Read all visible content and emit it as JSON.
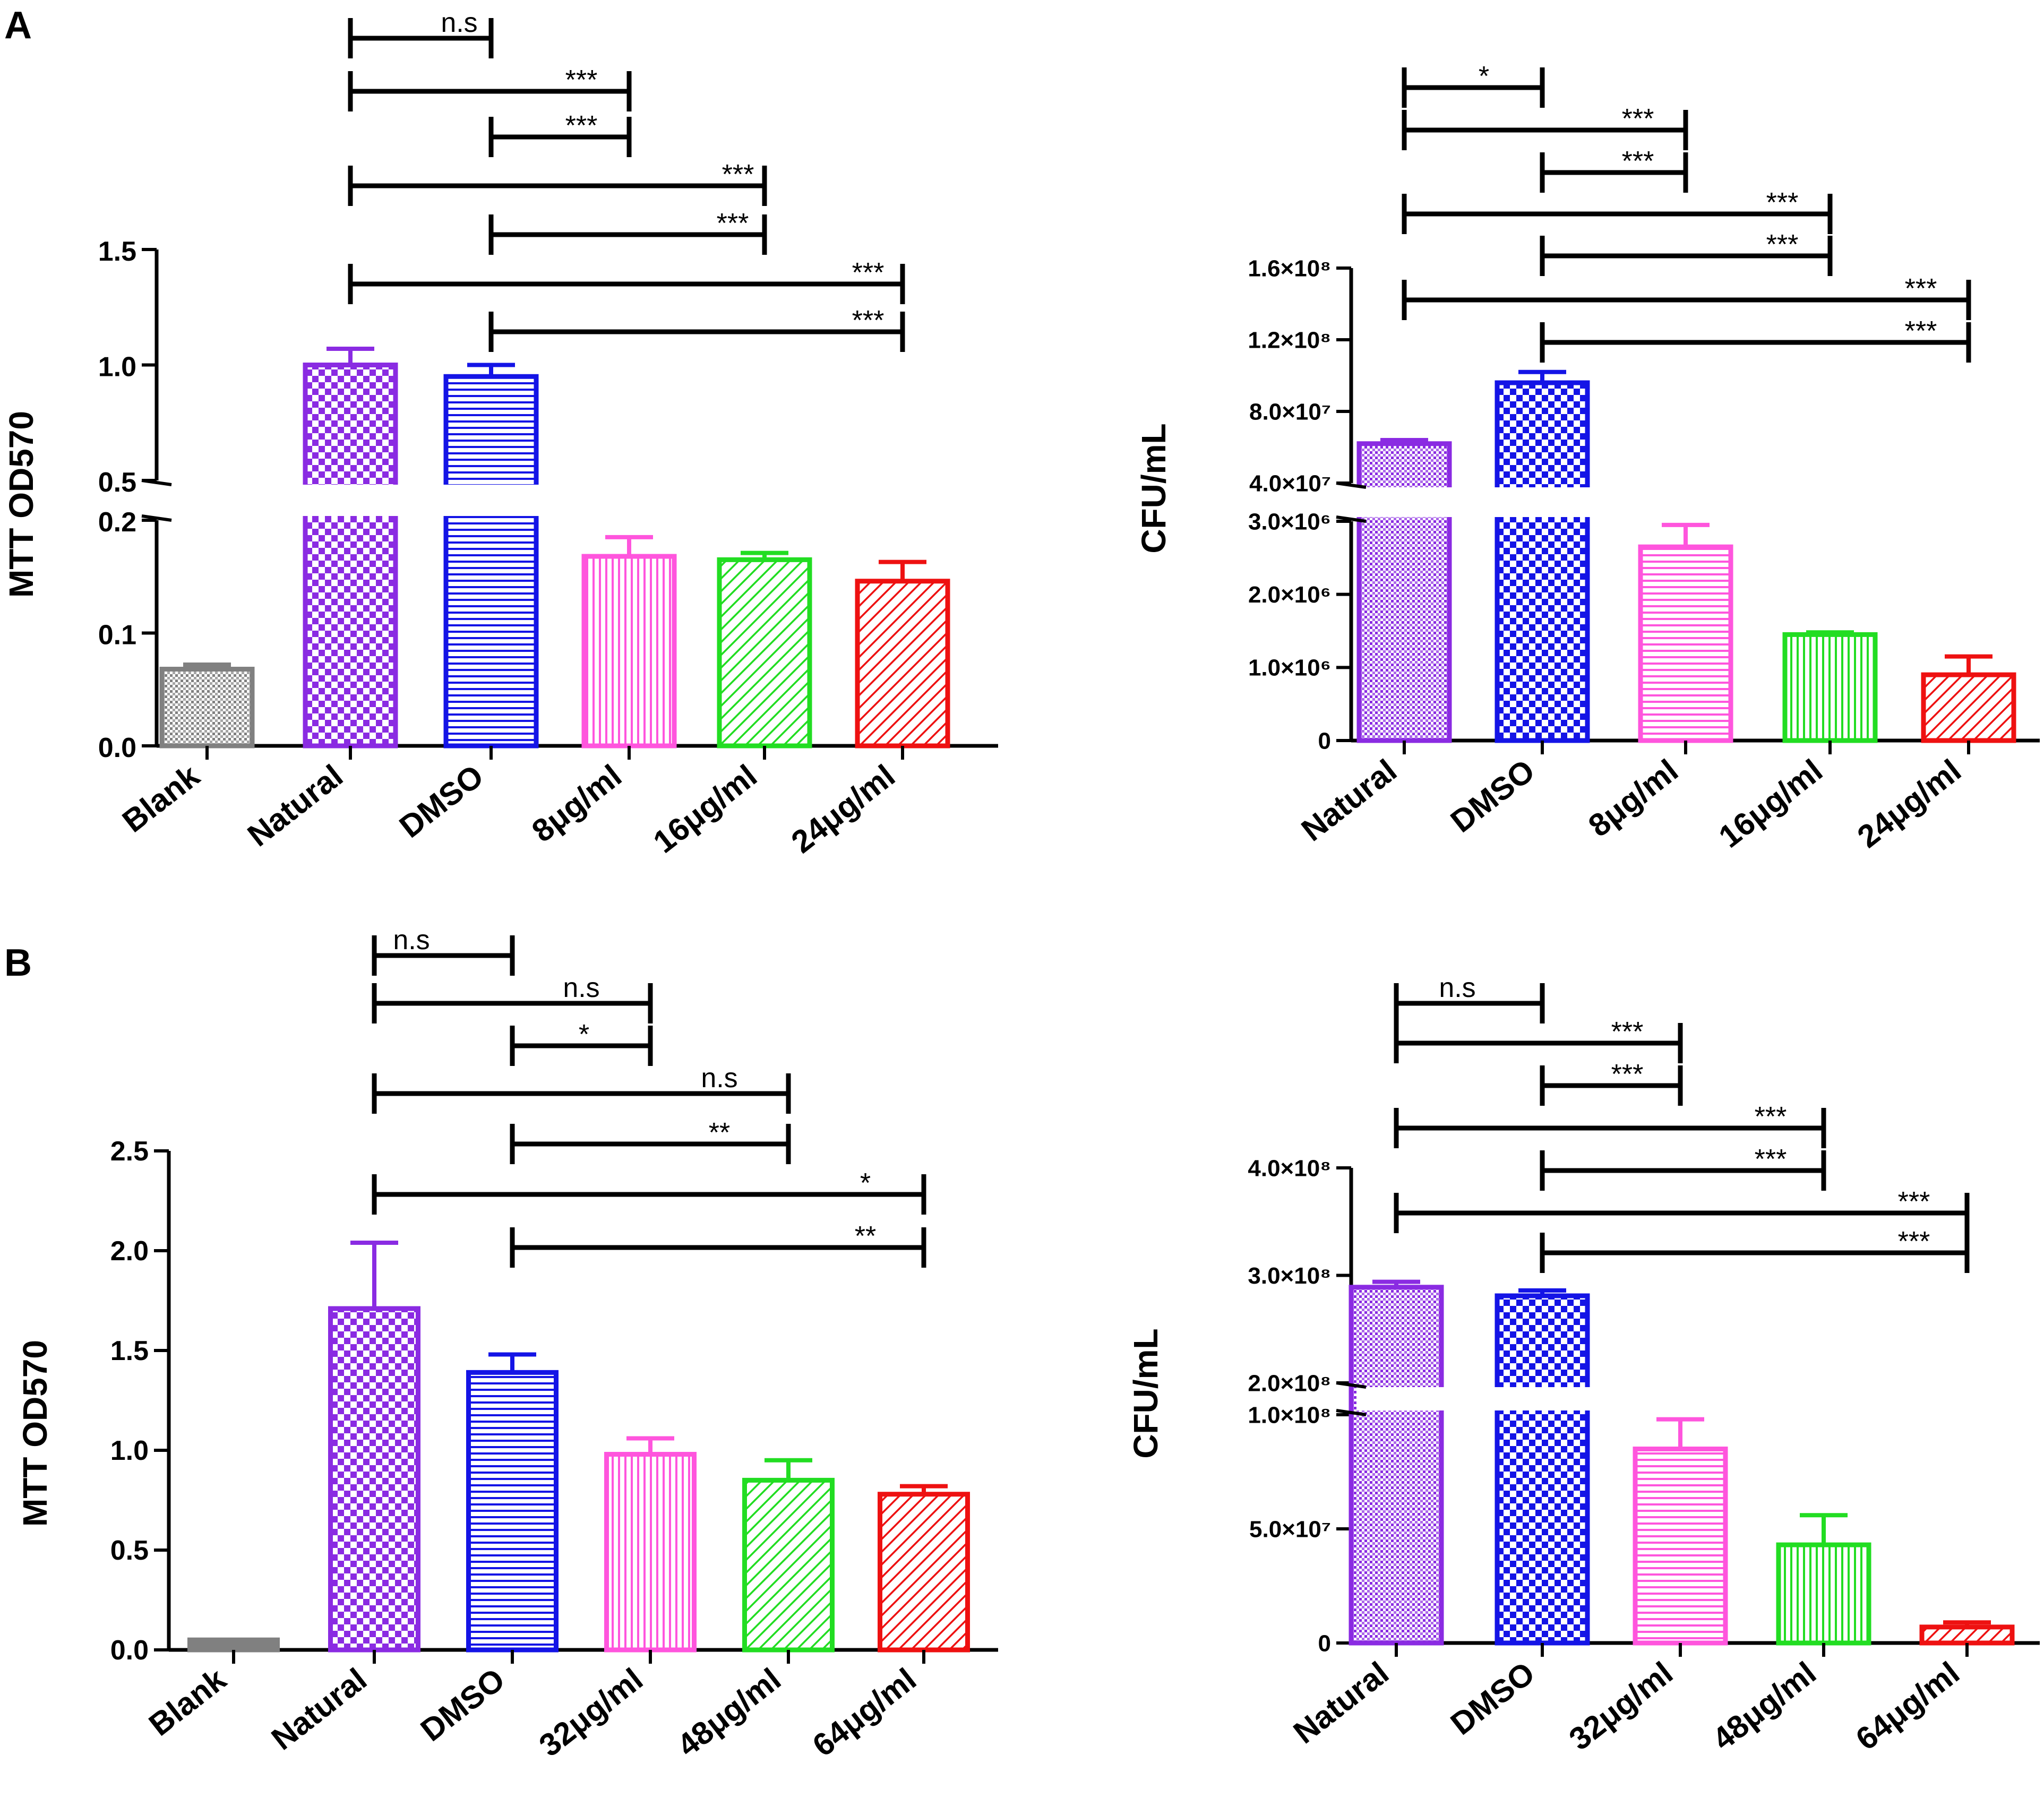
{
  "panel_labels": [
    "A",
    "B"
  ],
  "colors": {
    "Blank": "#808080",
    "Natural": "#8a2be2",
    "DMSO": "#1414e6",
    "pink": "#ff55dd",
    "green": "#22dd22",
    "red": "#ee1111"
  },
  "chart_data": [
    {
      "id": "A-left",
      "type": "bar",
      "panel": "A",
      "ylabel": "MTT OD570",
      "broken_axis": true,
      "ylim_lower": [
        0,
        0.2
      ],
      "ylim_upper": [
        0.5,
        1.5
      ],
      "yticks_lower": [
        {
          "v": 0.0,
          "label": "0.0"
        },
        {
          "v": 0.1,
          "label": "0.1"
        },
        {
          "v": 0.2,
          "label": "0.2"
        }
      ],
      "yticks_upper": [
        {
          "v": 0.5,
          "label": "0.5"
        },
        {
          "v": 1.0,
          "label": "1.0"
        },
        {
          "v": 1.5,
          "label": "1.5"
        }
      ],
      "categories": [
        "Blank",
        "Natural",
        "DMSO",
        "8μg/ml",
        "16μg/ml",
        "24μg/ml"
      ],
      "values": [
        0.068,
        1.0,
        0.95,
        0.168,
        0.165,
        0.146
      ],
      "errors": [
        0.004,
        0.07,
        0.05,
        0.017,
        0.006,
        0.017
      ],
      "patterns": [
        "dots",
        "checker",
        "hlines",
        "vlines",
        "diag",
        "diag"
      ],
      "colors": [
        "#808080",
        "#8a2be2",
        "#1414e6",
        "#ff55dd",
        "#22dd22",
        "#ee1111"
      ],
      "comparisons": [
        {
          "from": "Natural",
          "to": "DMSO",
          "label": "n.s"
        },
        {
          "from": "Natural",
          "to": "8μg/ml",
          "label": "***"
        },
        {
          "from": "DMSO",
          "to": "8μg/ml",
          "label": "***"
        },
        {
          "from": "Natural",
          "to": "16μg/ml",
          "label": "***"
        },
        {
          "from": "DMSO",
          "to": "16μg/ml",
          "label": "***"
        },
        {
          "from": "Natural",
          "to": "24μg/ml",
          "label": "***"
        },
        {
          "from": "DMSO",
          "to": "24μg/ml",
          "label": "***"
        }
      ]
    },
    {
      "id": "A-right",
      "type": "bar",
      "panel": "A",
      "ylabel": "CFU/mL",
      "broken_axis": true,
      "ylim_lower": [
        0,
        3000000
      ],
      "ylim_upper": [
        40000000,
        160000000
      ],
      "yticks_lower": [
        {
          "v": 0,
          "label": "0"
        },
        {
          "v": 1000000,
          "label": "1.0×10⁶"
        },
        {
          "v": 2000000,
          "label": "2.0×10⁶"
        },
        {
          "v": 3000000,
          "label": "3.0×10⁶"
        }
      ],
      "yticks_upper": [
        {
          "v": 40000000,
          "label": "4.0×10⁷"
        },
        {
          "v": 80000000,
          "label": "8.0×10⁷"
        },
        {
          "v": 120000000,
          "label": "1.2×10⁸"
        },
        {
          "v": 160000000,
          "label": "1.6×10⁸"
        }
      ],
      "categories": [
        "Natural",
        "DMSO",
        "8μg/ml",
        "16μg/ml",
        "24μg/ml"
      ],
      "values": [
        62000000,
        96000000,
        2650000,
        1450000,
        900000
      ],
      "errors": [
        2000000,
        6000000,
        300000,
        30000,
        250000
      ],
      "patterns": [
        "dots",
        "checker",
        "hlines",
        "vlines",
        "diag"
      ],
      "colors": [
        "#8a2be2",
        "#1414e6",
        "#ff55dd",
        "#22dd22",
        "#ee1111"
      ],
      "comparisons": [
        {
          "from": "Natural",
          "to": "DMSO",
          "label": "*"
        },
        {
          "from": "Natural",
          "to": "8μg/ml",
          "label": "***"
        },
        {
          "from": "DMSO",
          "to": "8μg/ml",
          "label": "***"
        },
        {
          "from": "Natural",
          "to": "16μg/ml",
          "label": "***"
        },
        {
          "from": "DMSO",
          "to": "16μg/ml",
          "label": "***"
        },
        {
          "from": "Natural",
          "to": "24μg/ml",
          "label": "***"
        },
        {
          "from": "DMSO",
          "to": "24μg/ml",
          "label": "***"
        }
      ]
    },
    {
      "id": "B-left",
      "type": "bar",
      "panel": "B",
      "ylabel": "MTT OD570",
      "broken_axis": false,
      "ylim": [
        0,
        2.5
      ],
      "yticks": [
        {
          "v": 0.0,
          "label": "0.0"
        },
        {
          "v": 0.5,
          "label": "0.5"
        },
        {
          "v": 1.0,
          "label": "1.0"
        },
        {
          "v": 1.5,
          "label": "1.5"
        },
        {
          "v": 2.0,
          "label": "2.0"
        },
        {
          "v": 2.5,
          "label": "2.5"
        }
      ],
      "categories": [
        "Blank",
        "Natural",
        "DMSO",
        "32μg/ml",
        "48μg/ml",
        "64μg/ml"
      ],
      "values": [
        0.05,
        1.71,
        1.39,
        0.98,
        0.85,
        0.78
      ],
      "errors": [
        0.0,
        0.33,
        0.09,
        0.08,
        0.1,
        0.04
      ],
      "patterns": [
        "solid",
        "checker",
        "hlines",
        "vlines",
        "diag",
        "diag"
      ],
      "colors": [
        "#808080",
        "#8a2be2",
        "#1414e6",
        "#ff55dd",
        "#22dd22",
        "#ee1111"
      ],
      "comparisons": [
        {
          "from": "Natural",
          "to": "DMSO",
          "label": "n.s"
        },
        {
          "from": "Natural",
          "to": "32μg/ml",
          "label": "n.s"
        },
        {
          "from": "DMSO",
          "to": "32μg/ml",
          "label": "*"
        },
        {
          "from": "Natural",
          "to": "48μg/ml",
          "label": "n.s"
        },
        {
          "from": "DMSO",
          "to": "48μg/ml",
          "label": "**"
        },
        {
          "from": "Natural",
          "to": "64μg/ml",
          "label": "*"
        },
        {
          "from": "DMSO",
          "to": "64μg/ml",
          "label": "**"
        }
      ]
    },
    {
      "id": "B-right",
      "type": "bar",
      "panel": "B",
      "ylabel": "CFU/mL",
      "broken_axis": true,
      "ylim_lower": [
        0,
        100000000
      ],
      "ylim_upper": [
        200000000,
        400000000
      ],
      "yticks_lower": [
        {
          "v": 0,
          "label": "0"
        },
        {
          "v": 50000000,
          "label": "5.0×10⁷"
        },
        {
          "v": 100000000,
          "label": "1.0×10⁸"
        }
      ],
      "yticks_upper": [
        {
          "v": 200000000,
          "label": "2.0×10⁸"
        },
        {
          "v": 300000000,
          "label": "3.0×10⁸"
        },
        {
          "v": 400000000,
          "label": "4.0×10⁸"
        }
      ],
      "categories": [
        "Natural",
        "DMSO",
        "32μg/ml",
        "48μg/ml",
        "64μg/ml"
      ],
      "values": [
        289000000,
        281000000,
        85000000,
        43000000,
        7000000
      ],
      "errors": [
        5000000,
        5000000,
        13000000,
        13000000,
        2000000
      ],
      "patterns": [
        "dots",
        "checker",
        "hlines",
        "vlines",
        "diag"
      ],
      "colors": [
        "#8a2be2",
        "#1414e6",
        "#ff55dd",
        "#22dd22",
        "#ee1111"
      ],
      "comparisons": [
        {
          "from": "Natural",
          "to": "DMSO",
          "label": "n.s"
        },
        {
          "from": "Natural",
          "to": "32μg/ml",
          "label": "***"
        },
        {
          "from": "DMSO",
          "to": "32μg/ml",
          "label": "***"
        },
        {
          "from": "Natural",
          "to": "48μg/ml",
          "label": "***"
        },
        {
          "from": "DMSO",
          "to": "48μg/ml",
          "label": "***"
        },
        {
          "from": "Natural",
          "to": "64μg/ml",
          "label": "***"
        },
        {
          "from": "DMSO",
          "to": "64μg/ml",
          "label": "***"
        }
      ]
    }
  ]
}
